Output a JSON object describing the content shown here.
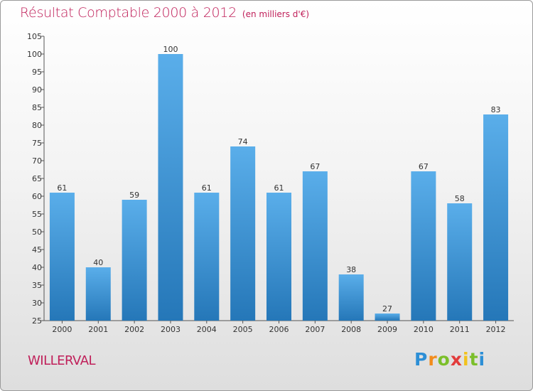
{
  "header": {
    "title": "Résultat Comptable 2000 à 2012",
    "subtitle": "(en milliers d'€)"
  },
  "footer": {
    "place": "WILLERVAL",
    "logo_text": "Proxiti"
  },
  "colors": {
    "bar_top": "#5aaeea",
    "bar_bottom": "#2577b8",
    "title": "#c0205a"
  },
  "chart_data": {
    "type": "bar",
    "title": "Résultat Comptable 2000 à 2012",
    "subtitle": "(en milliers d'€)",
    "categories": [
      "2000",
      "2001",
      "2002",
      "2003",
      "2004",
      "2005",
      "2006",
      "2007",
      "2008",
      "2009",
      "2010",
      "2011",
      "2012"
    ],
    "values": [
      61,
      40,
      59,
      100,
      61,
      74,
      61,
      67,
      38,
      27,
      67,
      58,
      83
    ],
    "ylim": [
      25,
      105
    ],
    "yticks": [
      25,
      30,
      35,
      40,
      45,
      50,
      55,
      60,
      65,
      70,
      75,
      80,
      85,
      90,
      95,
      100,
      105
    ],
    "grid": false,
    "data_labels": true
  }
}
